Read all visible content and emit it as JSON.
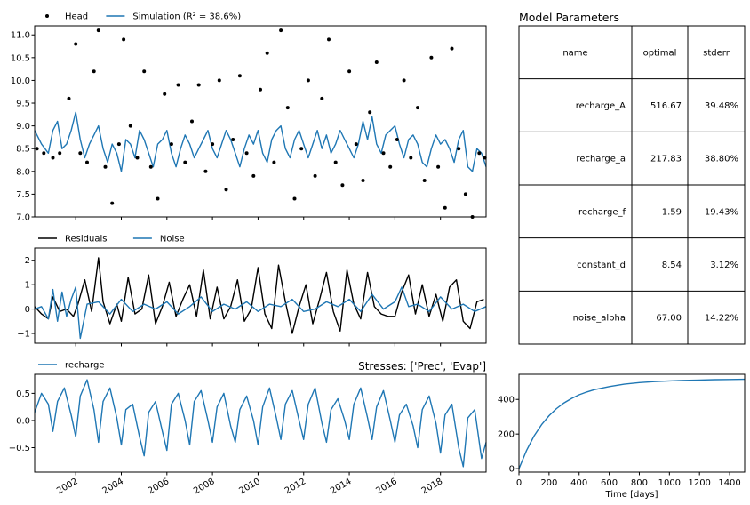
{
  "chart_data": [
    {
      "type": "line",
      "panel": "head-simulation",
      "legend": [
        {
          "label": "Head",
          "marker": "dot",
          "color": "#000000"
        },
        {
          "label": "Simulation (R² = 38.6%)",
          "marker": "line",
          "color": "#1f77b4"
        }
      ],
      "ylim": [
        7.0,
        11.2
      ],
      "yticks": [
        7.0,
        7.5,
        8.0,
        8.5,
        9.0,
        9.5,
        10.0,
        10.5,
        11.0
      ],
      "ytick_labels": [
        "7.0",
        "7.5",
        "8.0",
        "8.5",
        "9.0",
        "9.5",
        "10.0",
        "10.5",
        "11.0"
      ],
      "xlim": [
        2000.2,
        2020.0
      ],
      "series": [
        {
          "name": "Simulation (R² = 38.6%)",
          "color": "#1f77b4",
          "x": [
            2000.2,
            2000.5,
            2000.8,
            2001.0,
            2001.2,
            2001.4,
            2001.6,
            2001.8,
            2002.0,
            2002.2,
            2002.4,
            2002.6,
            2002.8,
            2003.0,
            2003.2,
            2003.4,
            2003.6,
            2003.8,
            2004.0,
            2004.2,
            2004.4,
            2004.6,
            2004.8,
            2005.0,
            2005.2,
            2005.4,
            2005.6,
            2005.8,
            2006.0,
            2006.2,
            2006.4,
            2006.6,
            2006.8,
            2007.0,
            2007.2,
            2007.4,
            2007.6,
            2007.8,
            2008.0,
            2008.2,
            2008.4,
            2008.6,
            2008.8,
            2009.0,
            2009.2,
            2009.4,
            2009.6,
            2009.8,
            2010.0,
            2010.2,
            2010.4,
            2010.6,
            2010.8,
            2011.0,
            2011.2,
            2011.4,
            2011.6,
            2011.8,
            2012.0,
            2012.2,
            2012.4,
            2012.6,
            2012.8,
            2013.0,
            2013.2,
            2013.4,
            2013.6,
            2013.8,
            2014.0,
            2014.2,
            2014.4,
            2014.6,
            2014.8,
            2015.0,
            2015.2,
            2015.4,
            2015.6,
            2015.8,
            2016.0,
            2016.2,
            2016.4,
            2016.6,
            2016.8,
            2017.0,
            2017.2,
            2017.4,
            2017.6,
            2017.8,
            2018.0,
            2018.2,
            2018.4,
            2018.6,
            2018.8,
            2019.0,
            2019.2,
            2019.4,
            2019.6,
            2019.8,
            2020.0
          ],
          "y": [
            8.9,
            8.6,
            8.4,
            8.9,
            9.1,
            8.5,
            8.6,
            8.9,
            9.3,
            8.7,
            8.3,
            8.6,
            8.8,
            9.0,
            8.5,
            8.2,
            8.6,
            8.4,
            8.0,
            8.7,
            8.6,
            8.3,
            8.9,
            8.7,
            8.4,
            8.1,
            8.6,
            8.7,
            8.9,
            8.4,
            8.1,
            8.5,
            8.8,
            8.6,
            8.3,
            8.5,
            8.7,
            8.9,
            8.5,
            8.3,
            8.6,
            8.9,
            8.7,
            8.4,
            8.1,
            8.5,
            8.8,
            8.6,
            8.9,
            8.4,
            8.2,
            8.7,
            8.9,
            9.0,
            8.5,
            8.3,
            8.7,
            8.9,
            8.6,
            8.3,
            8.6,
            8.9,
            8.5,
            8.8,
            8.4,
            8.6,
            8.9,
            8.7,
            8.5,
            8.3,
            8.6,
            9.1,
            8.7,
            9.2,
            8.6,
            8.4,
            8.8,
            8.9,
            9.0,
            8.6,
            8.3,
            8.7,
            8.8,
            8.6,
            8.2,
            8.1,
            8.5,
            8.8,
            8.6,
            8.7,
            8.5,
            8.2,
            8.7,
            8.9,
            8.1,
            8.0,
            8.5,
            8.4,
            8.1
          ]
        },
        {
          "name": "Head",
          "color": "#000000",
          "x": [
            2000.3,
            2000.6,
            2001.0,
            2001.3,
            2001.7,
            2002.0,
            2002.2,
            2002.5,
            2002.8,
            2003.0,
            2003.3,
            2003.6,
            2003.9,
            2004.1,
            2004.4,
            2004.7,
            2005.0,
            2005.3,
            2005.6,
            2005.9,
            2006.2,
            2006.5,
            2006.8,
            2007.1,
            2007.4,
            2007.7,
            2008.0,
            2008.3,
            2008.6,
            2008.9,
            2009.2,
            2009.5,
            2009.8,
            2010.1,
            2010.4,
            2010.7,
            2011.0,
            2011.3,
            2011.6,
            2011.9,
            2012.2,
            2012.5,
            2012.8,
            2013.1,
            2013.4,
            2013.7,
            2014.0,
            2014.3,
            2014.6,
            2014.9,
            2015.2,
            2015.5,
            2015.8,
            2016.1,
            2016.4,
            2016.7,
            2017.0,
            2017.3,
            2017.6,
            2017.9,
            2018.2,
            2018.5,
            2018.8,
            2019.1,
            2019.4,
            2019.7,
            2019.95
          ],
          "y": [
            8.5,
            8.4,
            8.3,
            8.4,
            9.6,
            10.8,
            8.4,
            8.2,
            10.2,
            11.1,
            8.1,
            7.3,
            8.6,
            10.9,
            9.0,
            8.3,
            10.2,
            8.1,
            7.4,
            9.7,
            8.6,
            9.9,
            8.2,
            9.1,
            9.9,
            8.0,
            8.6,
            10.0,
            7.6,
            8.7,
            10.1,
            8.4,
            7.9,
            9.8,
            10.6,
            8.2,
            11.1,
            9.4,
            7.4,
            8.5,
            10.0,
            7.9,
            9.6,
            10.9,
            8.2,
            7.7,
            10.2,
            8.6,
            7.8,
            9.3,
            10.4,
            8.4,
            8.1,
            8.7,
            10.0,
            8.3,
            9.4,
            7.8,
            10.5,
            8.1,
            7.2,
            10.7,
            8.5,
            7.5,
            7.0,
            8.4,
            8.3
          ]
        }
      ]
    },
    {
      "type": "line",
      "panel": "residuals-noise",
      "legend": [
        {
          "label": "Residuals",
          "marker": "line",
          "color": "#000000"
        },
        {
          "label": "Noise",
          "marker": "line",
          "color": "#1f77b4"
        }
      ],
      "ylim": [
        -1.4,
        2.5
      ],
      "yticks": [
        -1,
        0,
        1,
        2
      ],
      "ytick_labels": [
        "−1",
        "0",
        "1",
        "2"
      ],
      "xlim": [
        2000.2,
        2020.0
      ],
      "series": [
        {
          "name": "Residuals",
          "color": "#000000",
          "x": [
            2000.2,
            2000.5,
            2000.8,
            2001.0,
            2001.3,
            2001.6,
            2001.9,
            2002.1,
            2002.4,
            2002.7,
            2003.0,
            2003.2,
            2003.5,
            2003.8,
            2004.0,
            2004.3,
            2004.6,
            2004.9,
            2005.2,
            2005.5,
            2005.8,
            2006.1,
            2006.4,
            2006.7,
            2007.0,
            2007.3,
            2007.6,
            2007.9,
            2008.2,
            2008.5,
            2008.8,
            2009.1,
            2009.4,
            2009.7,
            2010.0,
            2010.3,
            2010.6,
            2010.9,
            2011.2,
            2011.5,
            2011.8,
            2012.1,
            2012.4,
            2012.7,
            2013.0,
            2013.3,
            2013.6,
            2013.9,
            2014.2,
            2014.5,
            2014.8,
            2015.1,
            2015.4,
            2015.7,
            2016.0,
            2016.3,
            2016.6,
            2016.9,
            2017.2,
            2017.5,
            2017.8,
            2018.1,
            2018.4,
            2018.7,
            2019.0,
            2019.3,
            2019.6,
            2019.9
          ],
          "y": [
            0.1,
            -0.2,
            -0.4,
            0.5,
            -0.1,
            0.0,
            -0.3,
            0.2,
            1.2,
            -0.1,
            2.1,
            0.3,
            -0.6,
            0.2,
            -0.5,
            1.3,
            -0.2,
            0.0,
            1.4,
            -0.6,
            0.1,
            1.1,
            -0.3,
            0.4,
            1.0,
            -0.3,
            1.6,
            -0.4,
            0.9,
            -0.4,
            0.1,
            1.2,
            -0.5,
            0.0,
            1.7,
            -0.2,
            -0.8,
            1.8,
            0.3,
            -1.0,
            0.1,
            1.0,
            -0.6,
            0.4,
            1.5,
            -0.1,
            -0.9,
            1.6,
            0.2,
            -0.4,
            1.5,
            0.1,
            -0.2,
            -0.3,
            -0.3,
            0.7,
            1.4,
            -0.2,
            1.0,
            -0.3,
            0.6,
            -0.5,
            0.9,
            1.2,
            -0.5,
            -0.8,
            0.3,
            0.4
          ]
        },
        {
          "name": "Noise",
          "color": "#1f77b4",
          "x": [
            2000.2,
            2000.5,
            2000.8,
            2001.0,
            2001.2,
            2001.4,
            2001.6,
            2001.8,
            2002.0,
            2002.2,
            2002.5,
            2003.0,
            2003.5,
            2004.0,
            2004.5,
            2005.0,
            2005.5,
            2006.0,
            2006.5,
            2007.0,
            2007.5,
            2008.0,
            2008.5,
            2009.0,
            2009.5,
            2010.0,
            2010.5,
            2011.0,
            2011.5,
            2012.0,
            2012.5,
            2013.0,
            2013.5,
            2014.0,
            2014.5,
            2015.0,
            2015.5,
            2016.0,
            2016.3,
            2016.6,
            2017.0,
            2017.5,
            2018.0,
            2018.5,
            2019.0,
            2019.5,
            2020.0
          ],
          "y": [
            0.0,
            0.1,
            -0.4,
            0.8,
            -0.5,
            0.7,
            -0.3,
            0.4,
            0.9,
            -1.2,
            0.2,
            0.3,
            -0.2,
            0.4,
            -0.1,
            0.2,
            0.0,
            0.3,
            -0.2,
            0.1,
            0.5,
            -0.1,
            0.2,
            0.0,
            0.3,
            -0.1,
            0.2,
            0.1,
            0.4,
            -0.1,
            0.0,
            0.3,
            0.1,
            0.4,
            -0.1,
            0.6,
            0.0,
            0.3,
            0.9,
            0.1,
            0.2,
            -0.1,
            0.5,
            0.0,
            0.2,
            -0.1,
            0.1
          ]
        }
      ]
    },
    {
      "type": "line",
      "panel": "recharge-stress",
      "title": "Stresses: ['Prec', 'Evap']",
      "legend": [
        {
          "label": "recharge",
          "marker": "line",
          "color": "#1f77b4"
        }
      ],
      "ylim": [
        -0.95,
        0.85
      ],
      "yticks": [
        -0.5,
        0.0,
        0.5
      ],
      "ytick_labels": [
        "−0.5",
        "0.0",
        "0.5"
      ],
      "xlim": [
        2000.2,
        2020.0
      ],
      "xticks": [
        2002,
        2004,
        2006,
        2008,
        2010,
        2012,
        2014,
        2016,
        2018
      ],
      "xtick_labels": [
        "2002",
        "2004",
        "2006",
        "2008",
        "2010",
        "2012",
        "2014",
        "2016",
        "2018"
      ],
      "series": [
        {
          "name": "recharge",
          "color": "#1f77b4",
          "x": [
            2000.2,
            2000.5,
            2000.8,
            2001.0,
            2001.2,
            2001.5,
            2001.8,
            2002.0,
            2002.2,
            2002.5,
            2002.8,
            2003.0,
            2003.2,
            2003.5,
            2003.8,
            2004.0,
            2004.2,
            2004.5,
            2004.8,
            2005.0,
            2005.2,
            2005.5,
            2005.8,
            2006.0,
            2006.2,
            2006.5,
            2006.8,
            2007.0,
            2007.2,
            2007.5,
            2007.8,
            2008.0,
            2008.2,
            2008.5,
            2008.8,
            2009.0,
            2009.2,
            2009.5,
            2009.8,
            2010.0,
            2010.2,
            2010.5,
            2010.8,
            2011.0,
            2011.2,
            2011.5,
            2011.8,
            2012.0,
            2012.2,
            2012.5,
            2012.8,
            2013.0,
            2013.2,
            2013.5,
            2013.8,
            2014.0,
            2014.2,
            2014.5,
            2014.8,
            2015.0,
            2015.2,
            2015.5,
            2015.8,
            2016.0,
            2016.2,
            2016.5,
            2016.8,
            2017.0,
            2017.2,
            2017.5,
            2017.8,
            2018.0,
            2018.2,
            2018.5,
            2018.8,
            2019.0,
            2019.2,
            2019.5,
            2019.8,
            2020.0
          ],
          "y": [
            0.15,
            0.5,
            0.3,
            -0.2,
            0.35,
            0.6,
            0.1,
            -0.3,
            0.45,
            0.75,
            0.2,
            -0.4,
            0.35,
            0.6,
            0.05,
            -0.45,
            0.2,
            0.3,
            -0.3,
            -0.65,
            0.15,
            0.35,
            -0.2,
            -0.55,
            0.3,
            0.5,
            0.0,
            -0.45,
            0.35,
            0.55,
            0.0,
            -0.4,
            0.25,
            0.5,
            -0.1,
            -0.4,
            0.2,
            0.45,
            0.0,
            -0.45,
            0.25,
            0.6,
            0.05,
            -0.35,
            0.3,
            0.55,
            0.0,
            -0.35,
            0.3,
            0.6,
            -0.05,
            -0.4,
            0.2,
            0.4,
            0.0,
            -0.35,
            0.3,
            0.6,
            0.05,
            -0.35,
            0.25,
            0.55,
            0.0,
            -0.4,
            0.1,
            0.3,
            -0.1,
            -0.5,
            0.2,
            0.45,
            -0.05,
            -0.6,
            0.1,
            0.3,
            -0.5,
            -0.85,
            0.05,
            0.2,
            -0.7,
            -0.4
          ]
        }
      ]
    },
    {
      "type": "line",
      "panel": "step-response",
      "xlabel": "Time [days]",
      "xlim": [
        0,
        1500
      ],
      "xticks": [
        0,
        200,
        400,
        600,
        800,
        1000,
        1200,
        1400
      ],
      "xtick_labels": [
        "0",
        "200",
        "400",
        "600",
        "800",
        "1000",
        "1200",
        "1400"
      ],
      "ylim": [
        -20,
        545
      ],
      "yticks": [
        0,
        200,
        400
      ],
      "ytick_labels": [
        "0",
        "200",
        "400"
      ],
      "series": [
        {
          "name": "recharge",
          "color": "#1f77b4",
          "x": [
            0,
            50,
            100,
            150,
            200,
            250,
            300,
            350,
            400,
            450,
            500,
            600,
            700,
            800,
            900,
            1000,
            1100,
            1200,
            1300,
            1400,
            1500
          ],
          "y": [
            0,
            105,
            188,
            254,
            306,
            347,
            380,
            406,
            427,
            443,
            456,
            474,
            488,
            497,
            503,
            507,
            510,
            512,
            514,
            515,
            516
          ]
        }
      ]
    },
    {
      "type": "table",
      "panel": "model-parameters",
      "title": "Model Parameters",
      "columns": [
        "name",
        "optimal",
        "stderr"
      ],
      "rows": [
        [
          "recharge_A",
          "516.67",
          "39.48%"
        ],
        [
          "recharge_a",
          "217.83",
          "38.80%"
        ],
        [
          "recharge_f",
          "-1.59",
          "19.43%"
        ],
        [
          "constant_d",
          "8.54",
          "3.12%"
        ],
        [
          "noise_alpha",
          "67.00",
          "14.22%"
        ]
      ]
    }
  ]
}
